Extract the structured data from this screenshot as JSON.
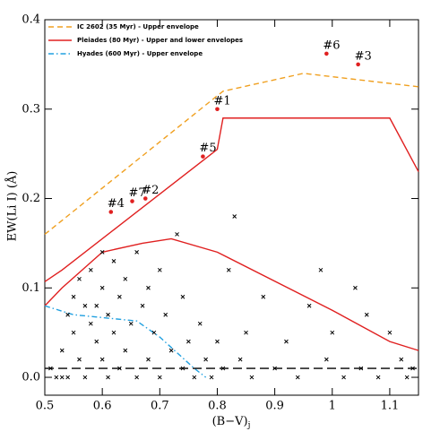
{
  "chart_data": {
    "type": "line",
    "xlabel": "(B−V)",
    "xlabel_sub": "j",
    "ylabel": "EW(Li I) (Å)",
    "xlim": [
      0.5,
      1.15
    ],
    "ylim": [
      -0.02,
      0.4
    ],
    "xticks": [
      0.5,
      0.6,
      0.7,
      0.8,
      0.9,
      1.0,
      1.1
    ],
    "yticks": [
      {
        "value": 0,
        "label": "0.0"
      },
      0.1,
      0.2,
      0.3,
      0.4
    ],
    "legend": "top-left",
    "series": [
      {
        "name": "IC 2602 (35 Myr) - Upper envelope",
        "color": "#f0a020",
        "style": "dashed",
        "x": [
          0.5,
          0.8,
          0.81,
          0.95,
          1.15
        ],
        "y": [
          0.16,
          0.315,
          0.32,
          0.34,
          0.325
        ]
      },
      {
        "name": "Pleiades (80 Myr) - Upper and lower envelopes",
        "color": "#e02020",
        "style": "solid",
        "x": [
          0.5,
          0.53,
          0.79,
          0.8,
          0.81,
          1.1,
          1.15,
          null,
          0.5,
          0.53,
          0.6,
          0.67,
          0.72,
          0.8,
          1.0,
          1.1,
          1.15
        ],
        "y": [
          0.107,
          0.12,
          0.25,
          0.255,
          0.29,
          0.29,
          0.23,
          null,
          0.08,
          0.1,
          0.14,
          0.15,
          0.155,
          0.14,
          0.075,
          0.04,
          0.03
        ]
      },
      {
        "name": "Hyades (600 Myr) - Upper envelope",
        "color": "#20a0e0",
        "style": "dashdot",
        "x": [
          0.5,
          0.55,
          0.66,
          0.7,
          0.76,
          0.78
        ],
        "y": [
          0.08,
          0.07,
          0.063,
          0.045,
          0.01,
          0.0
        ]
      },
      {
        "color": "#000000",
        "style": "longdash",
        "x": [
          0.5,
          1.15
        ],
        "y": [
          0.01,
          0.01
        ]
      }
    ],
    "points": {
      "color": "#e02020",
      "labels": [
        "#1",
        "#2",
        "#3",
        "#4",
        "#5",
        "#6",
        "#7"
      ],
      "x": [
        0.8,
        0.675,
        1.045,
        0.615,
        0.775,
        0.99,
        0.652
      ],
      "y": [
        0.3,
        0.2,
        0.35,
        0.185,
        0.247,
        0.362,
        0.197
      ]
    },
    "crosses": {
      "color": "#000000",
      "x": [
        0.51,
        0.52,
        0.53,
        0.54,
        0.55,
        0.55,
        0.56,
        0.56,
        0.57,
        0.57,
        0.58,
        0.58,
        0.59,
        0.59,
        0.6,
        0.6,
        0.61,
        0.61,
        0.62,
        0.62,
        0.63,
        0.63,
        0.64,
        0.64,
        0.65,
        0.66,
        0.66,
        0.67,
        0.68,
        0.68,
        0.69,
        0.7,
        0.7,
        0.71,
        0.72,
        0.73,
        0.74,
        0.74,
        0.75,
        0.76,
        0.77,
        0.78,
        0.79,
        0.8,
        0.81,
        0.82,
        0.83,
        0.84,
        0.85,
        0.86,
        0.88,
        0.9,
        0.92,
        0.94,
        0.96,
        0.98,
        0.99,
        1.0,
        1.02,
        1.04,
        1.05,
        1.06,
        1.08,
        1.1,
        1.12,
        1.13,
        1.14,
        0.54,
        0.6,
        0.53
      ],
      "y": [
        0.01,
        0.0,
        0.03,
        0.07,
        0.05,
        0.09,
        0.02,
        0.11,
        0.08,
        0.0,
        0.06,
        0.12,
        0.04,
        0.08,
        0.1,
        0.02,
        0.07,
        0.0,
        0.13,
        0.05,
        0.09,
        0.01,
        0.03,
        0.11,
        0.06,
        0.0,
        0.14,
        0.08,
        0.02,
        0.1,
        0.05,
        0.12,
        0.0,
        0.07,
        0.03,
        0.16,
        0.01,
        0.09,
        0.04,
        0.0,
        0.06,
        0.02,
        0.0,
        0.04,
        0.01,
        0.12,
        0.18,
        0.02,
        0.05,
        0.0,
        0.09,
        0.01,
        0.04,
        0.0,
        0.08,
        0.12,
        0.02,
        0.05,
        0.0,
        0.1,
        0.01,
        0.07,
        0.0,
        0.05,
        0.02,
        0.0,
        0.01,
        0.0,
        0.14,
        0.0
      ]
    }
  }
}
